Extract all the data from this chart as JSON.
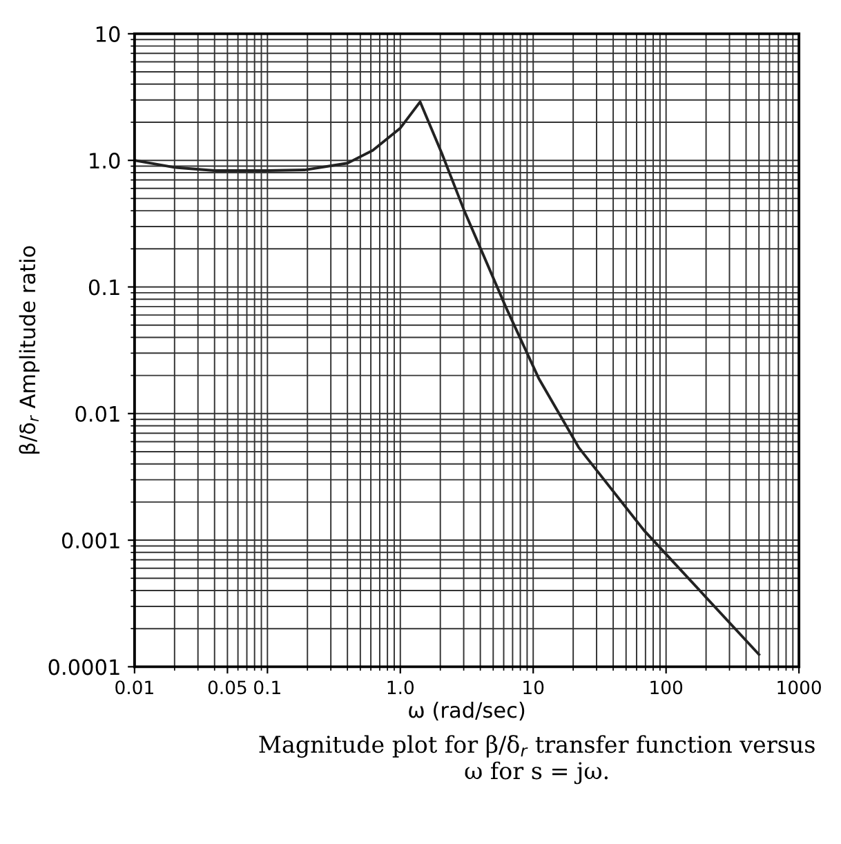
{
  "chart_data": {
    "type": "line",
    "xlabel": "ω (rad/sec)",
    "ylabel": "β/δ$_{r}$ Amplitude ratio",
    "annotations": [
      "Magnitude plot for β/δ$_{r}$ transfer function versus\nω for s = jω."
    ],
    "x": [
      0.01,
      0.02,
      0.04,
      0.1,
      0.19,
      0.4,
      0.62,
      1.0,
      1.41,
      2.05,
      3.0,
      6.2,
      11,
      22,
      68,
      500
    ],
    "series": [
      {
        "color": "#222222",
        "values": [
          1.0,
          0.88,
          0.83,
          0.83,
          0.84,
          0.95,
          1.2,
          1.8,
          2.9,
          1.14,
          0.41,
          0.07,
          0.019,
          0.0054,
          0.0012,
          0.000125
        ]
      }
    ],
    "log": "xy",
    "xlim": [
      0.01,
      1000
    ],
    "ylim": [
      0.0001,
      10
    ],
    "xticks": [
      0.01,
      0.05,
      0.1,
      {
        "value": 1,
        "label": "1.0"
      },
      10,
      100,
      1000
    ],
    "yticks": [
      0.0001,
      0.001,
      0.01,
      0.1,
      {
        "value": 1,
        "label": "1.0"
      },
      10
    ],
    "grid": true,
    "marker": "none",
    "line_style": "solid"
  }
}
